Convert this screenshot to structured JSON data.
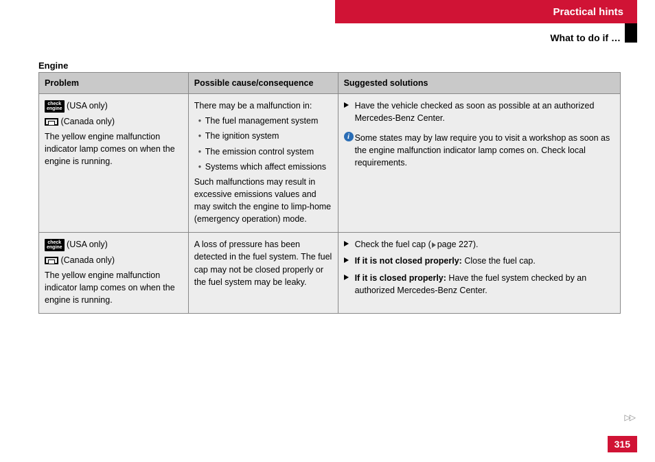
{
  "header": {
    "band_title": "Practical hints",
    "subheader": "What to do if …",
    "band_color": "#d01335"
  },
  "section": {
    "title": "Engine"
  },
  "table": {
    "columns": [
      "Problem",
      "Possible cause/consequence",
      "Suggested solutions"
    ],
    "rows": [
      {
        "problem": {
          "icon1_label": "check\nengine",
          "icon1_note": "(USA only)",
          "icon2_note": "(Canada only)",
          "text": "The yellow engine malfunction indicator lamp comes on when the engine is running."
        },
        "cause": {
          "intro": "There may be a malfunction in:",
          "bullets": [
            "The fuel management system",
            "The ignition system",
            "The emission control system",
            "Systems which affect emissions"
          ],
          "outro": "Such malfunctions may result in excessive emissions values and may switch the engine to limp-home (emergency operation) mode."
        },
        "solution": {
          "items": [
            {
              "text": "Have the vehicle checked as soon as possible at an authorized Mercedes-Benz Center."
            }
          ],
          "info": "Some states may by law require you to visit a workshop as soon as the engine malfunction indicator lamp comes on. Check local requirements."
        }
      },
      {
        "problem": {
          "icon1_label": "check\nengine",
          "icon1_note": "(USA only)",
          "icon2_note": "(Canada only)",
          "text": "The yellow engine malfunction indicator lamp comes on when the engine is running."
        },
        "cause": {
          "intro": "A loss of pressure has been detected in the fuel system. The fuel cap may not be closed properly or the fuel system may be leaky."
        },
        "solution": {
          "items": [
            {
              "text_pre": "Check the fuel cap (",
              "page_ref": "page 227",
              "text_post": ")."
            },
            {
              "bold": "If it is not closed properly:",
              "text": " Close the fuel cap."
            },
            {
              "bold": "If it is closed properly:",
              "text": " Have the fuel system checked by an authorized Mercedes-Benz Center."
            }
          ]
        }
      }
    ]
  },
  "footer": {
    "arrows": "▷▷",
    "page_number": "315"
  }
}
